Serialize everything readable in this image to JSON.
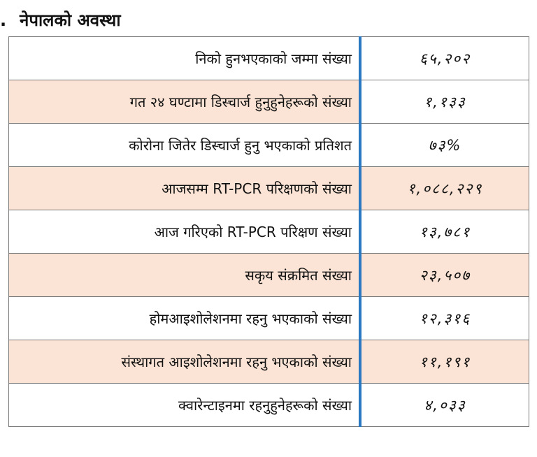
{
  "title": {
    "bullet": ".",
    "text": "नेपालको अवस्था"
  },
  "rows": [
    {
      "label": "निको हुनभएकाको जम्मा संख्या",
      "value": "६५,२०२"
    },
    {
      "label": "गत २४ घण्टामा डिस्चार्ज हुनुहुनेहरूको संख्या",
      "value": "१,१३३"
    },
    {
      "label": "कोरोना जितेर डिस्चार्ज हुनु भएकाको प्रतिशत",
      "value": "७३%"
    },
    {
      "label": "आजसम्म RT-PCR परिक्षणको संख्या",
      "value": "१,०८८,२२९"
    },
    {
      "label": "आज गरिएको RT-PCR परिक्षण संख्या",
      "value": "१३,७८१"
    },
    {
      "label": "सकृय संक्रमित संख्या",
      "value": "२३,५०७"
    },
    {
      "label": "होमआइशोलेशनमा रहनु भएकाको संख्या",
      "value": "१२,३१६"
    },
    {
      "label": "संस्थागत आइशोलेशनमा रहनु भएकाको संख्या",
      "value": "११,१९१"
    },
    {
      "label": "क्वारेन्टाइनमा रहनुहुनेहरूको संख्या",
      "value": "४,०३३"
    }
  ],
  "colors": {
    "shade": "#fbe4d5",
    "divider": "#2a78c2"
  }
}
